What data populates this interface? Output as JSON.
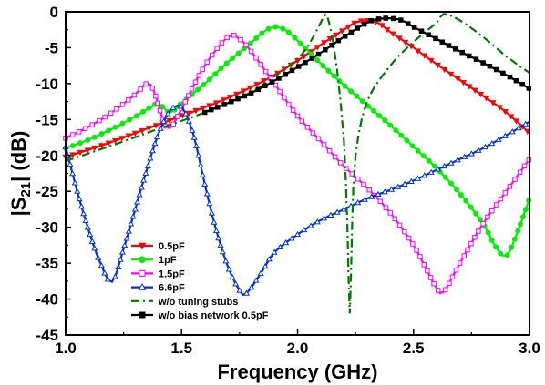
{
  "chart_data": {
    "type": "line",
    "xlabel": "Frequency (GHz)",
    "ylabel": "|S21| (dB)",
    "xlim": [
      1.0,
      3.0
    ],
    "ylim": [
      -45,
      0
    ],
    "xticks": [
      "1.0",
      "1.5",
      "2.0",
      "2.5",
      "3.0"
    ],
    "yticks": [
      "0",
      "-5",
      "-10",
      "-15",
      "-20",
      "-25",
      "-30",
      "-35",
      "-40",
      "-45"
    ],
    "grid": false,
    "legend_position": "bottom-center",
    "series": [
      {
        "name": "0.5pF",
        "color": "#ff0000",
        "marker": "triangle-down",
        "dash": "solid",
        "points": [
          [
            1.0,
            -20.2
          ],
          [
            1.1,
            -19.2
          ],
          [
            1.2,
            -18.1
          ],
          [
            1.3,
            -16.9
          ],
          [
            1.4,
            -15.7
          ],
          [
            1.5,
            -14.5
          ],
          [
            1.6,
            -13.3
          ],
          [
            1.7,
            -12.0
          ],
          [
            1.8,
            -10.5
          ],
          [
            1.9,
            -8.8
          ],
          [
            2.0,
            -6.8
          ],
          [
            2.1,
            -4.6
          ],
          [
            2.2,
            -2.5
          ],
          [
            2.25,
            -1.5
          ],
          [
            2.3,
            -1.2
          ],
          [
            2.35,
            -1.6
          ],
          [
            2.4,
            -2.8
          ],
          [
            2.5,
            -5.0
          ],
          [
            2.6,
            -7.3
          ],
          [
            2.7,
            -9.5
          ],
          [
            2.8,
            -11.7
          ],
          [
            2.9,
            -14.0
          ],
          [
            3.0,
            -16.9
          ]
        ]
      },
      {
        "name": "1pF",
        "color": "#00ee00",
        "marker": "circle",
        "dash": "solid",
        "points": [
          [
            1.0,
            -19.0
          ],
          [
            1.1,
            -17.8
          ],
          [
            1.2,
            -16.3
          ],
          [
            1.3,
            -14.6
          ],
          [
            1.35,
            -13.6
          ],
          [
            1.4,
            -12.8
          ],
          [
            1.45,
            -14.0
          ],
          [
            1.5,
            -12.7
          ],
          [
            1.6,
            -10.0
          ],
          [
            1.7,
            -7.0
          ],
          [
            1.8,
            -4.3
          ],
          [
            1.85,
            -2.9
          ],
          [
            1.9,
            -2.1
          ],
          [
            1.95,
            -2.6
          ],
          [
            2.0,
            -4.0
          ],
          [
            2.1,
            -7.2
          ],
          [
            2.2,
            -10.2
          ],
          [
            2.3,
            -13.0
          ],
          [
            2.4,
            -15.8
          ],
          [
            2.5,
            -18.8
          ],
          [
            2.6,
            -21.8
          ],
          [
            2.7,
            -25.3
          ],
          [
            2.8,
            -29.5
          ],
          [
            2.85,
            -32.5
          ],
          [
            2.9,
            -34.0
          ],
          [
            2.95,
            -30.5
          ],
          [
            3.0,
            -26.0
          ]
        ]
      },
      {
        "name": "1.5pF",
        "color": "#ff00ff",
        "marker": "square",
        "dash": "solid",
        "points": [
          [
            1.0,
            -17.6
          ],
          [
            1.1,
            -16.0
          ],
          [
            1.2,
            -14.0
          ],
          [
            1.3,
            -11.5
          ],
          [
            1.35,
            -10.0
          ],
          [
            1.38,
            -11.0
          ],
          [
            1.42,
            -15.0
          ],
          [
            1.45,
            -16.2
          ],
          [
            1.5,
            -13.5
          ],
          [
            1.6,
            -7.5
          ],
          [
            1.7,
            -3.5
          ],
          [
            1.75,
            -3.8
          ],
          [
            1.8,
            -5.5
          ],
          [
            1.9,
            -10.0
          ],
          [
            2.0,
            -14.5
          ],
          [
            2.1,
            -18.0
          ],
          [
            2.2,
            -21.5
          ],
          [
            2.3,
            -24.5
          ],
          [
            2.4,
            -28.0
          ],
          [
            2.5,
            -32.5
          ],
          [
            2.55,
            -35.5
          ],
          [
            2.6,
            -38.5
          ],
          [
            2.63,
            -39.0
          ],
          [
            2.7,
            -35.0
          ],
          [
            2.8,
            -29.5
          ],
          [
            2.9,
            -25.0
          ],
          [
            3.0,
            -20.5
          ]
        ]
      },
      {
        "name": "6.6pF",
        "color": "#0033cc",
        "marker": "triangle-up",
        "dash": "solid",
        "points": [
          [
            1.0,
            -18.8
          ],
          [
            1.05,
            -25.0
          ],
          [
            1.1,
            -30.5
          ],
          [
            1.15,
            -35.0
          ],
          [
            1.2,
            -37.6
          ],
          [
            1.25,
            -33.0
          ],
          [
            1.3,
            -27.5
          ],
          [
            1.35,
            -22.0
          ],
          [
            1.4,
            -17.0
          ],
          [
            1.45,
            -13.8
          ],
          [
            1.5,
            -13.3
          ],
          [
            1.55,
            -17.0
          ],
          [
            1.6,
            -24.0
          ],
          [
            1.65,
            -30.5
          ],
          [
            1.7,
            -35.5
          ],
          [
            1.75,
            -38.8
          ],
          [
            1.78,
            -39.2
          ],
          [
            1.85,
            -36.0
          ],
          [
            1.9,
            -33.5
          ],
          [
            2.0,
            -31.0
          ],
          [
            2.1,
            -29.0
          ],
          [
            2.2,
            -27.5
          ],
          [
            2.3,
            -26.0
          ],
          [
            2.4,
            -24.8
          ],
          [
            2.5,
            -23.5
          ],
          [
            2.6,
            -22.0
          ],
          [
            2.7,
            -20.5
          ],
          [
            2.8,
            -19.0
          ],
          [
            2.9,
            -17.2
          ],
          [
            3.0,
            -15.3
          ]
        ]
      },
      {
        "name": "w/o tuning stubs",
        "color": "#007700",
        "marker": "none",
        "dash": "dash-dot",
        "points": [
          [
            1.0,
            -20.8
          ],
          [
            1.2,
            -18.6
          ],
          [
            1.4,
            -16.3
          ],
          [
            1.6,
            -14.0
          ],
          [
            1.8,
            -11.2
          ],
          [
            1.9,
            -9.0
          ],
          [
            2.0,
            -6.5
          ],
          [
            2.05,
            -4.5
          ],
          [
            2.1,
            -1.5
          ],
          [
            2.12,
            -0.4
          ],
          [
            2.14,
            -2.0
          ],
          [
            2.17,
            -8.0
          ],
          [
            2.2,
            -18.0
          ],
          [
            2.215,
            -30.0
          ],
          [
            2.225,
            -42.0
          ],
          [
            2.235,
            -30.0
          ],
          [
            2.25,
            -20.0
          ],
          [
            2.3,
            -12.5
          ],
          [
            2.4,
            -7.5
          ],
          [
            2.5,
            -4.2
          ],
          [
            2.6,
            -1.5
          ],
          [
            2.63,
            -0.3
          ],
          [
            2.7,
            -1.2
          ],
          [
            2.8,
            -3.5
          ],
          [
            2.9,
            -6.2
          ],
          [
            3.0,
            -8.5
          ]
        ]
      },
      {
        "name": "w/o bias network 0.5pF",
        "color": "#000000",
        "marker": "square",
        "dash": "solid",
        "points": [
          [
            1.6,
            -14.0
          ],
          [
            1.7,
            -12.7
          ],
          [
            1.8,
            -11.3
          ],
          [
            1.9,
            -9.6
          ],
          [
            2.0,
            -7.7
          ],
          [
            2.1,
            -5.7
          ],
          [
            2.2,
            -3.5
          ],
          [
            2.3,
            -1.5
          ],
          [
            2.35,
            -1.0
          ],
          [
            2.4,
            -0.9
          ],
          [
            2.45,
            -1.2
          ],
          [
            2.5,
            -2.1
          ],
          [
            2.6,
            -3.8
          ],
          [
            2.7,
            -5.5
          ],
          [
            2.8,
            -7.1
          ],
          [
            2.9,
            -8.8
          ],
          [
            3.0,
            -10.7
          ]
        ]
      }
    ]
  }
}
